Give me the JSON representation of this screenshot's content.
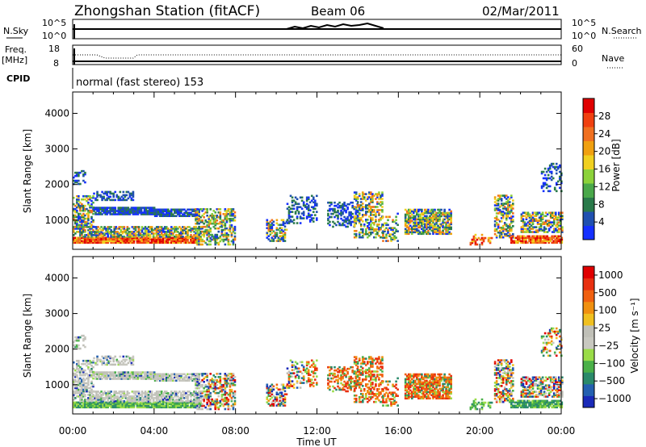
{
  "header": {
    "title": "Zhongshan Station (fitACF)",
    "beam": "Beam 06",
    "date": "02/Mar/2011"
  },
  "top_panels": {
    "nsky_label": "N.Sky",
    "nsearch_label": "N.Search",
    "noise_ticks": [
      "10^5",
      "10^0"
    ],
    "freq_label_1": "Freq.",
    "freq_label_2": "[MHz]",
    "freq_ticks": [
      "18",
      "8"
    ],
    "nave_label": "Nave",
    "nave_ticks": [
      "60",
      "0"
    ],
    "cpid_label": "CPID",
    "cpid_text": "normal (fast stereo) 153"
  },
  "chart_data": [
    {
      "type": "heatmap",
      "name": "power",
      "xlabel": "Time UT",
      "ylabel": "Slant Range [km]",
      "x_ticks": [
        "00:00",
        "04:00",
        "08:00",
        "12:00",
        "16:00",
        "20:00",
        "00:00"
      ],
      "xlim_hours": [
        0,
        24
      ],
      "y_ticks": [
        "1000",
        "2000",
        "3000",
        "4000"
      ],
      "ylim": [
        180,
        4600
      ],
      "colorbar": {
        "label": "Power [dB]",
        "ticks": [
          "4",
          "8",
          "12",
          "16",
          "20",
          "24",
          "28"
        ],
        "range": [
          0,
          32
        ],
        "colors": [
          "#1530ff",
          "#2050b0",
          "#2a7a4a",
          "#4aa84a",
          "#8cd23a",
          "#f0d020",
          "#f0a010",
          "#f07020",
          "#f04010",
          "#e00000"
        ]
      }
    },
    {
      "type": "heatmap",
      "name": "velocity",
      "xlabel": "Time UT",
      "ylabel": "Slant Range [km]",
      "x_ticks": [
        "00:00",
        "04:00",
        "08:00",
        "12:00",
        "16:00",
        "20:00",
        "00:00"
      ],
      "xlim_hours": [
        0,
        24
      ],
      "y_ticks": [
        "1000",
        "2000",
        "3000",
        "4000"
      ],
      "ylim": [
        180,
        4600
      ],
      "colorbar": {
        "label": "Velocity [m s⁻¹]",
        "ticks": [
          "1000",
          "500",
          "100",
          "25",
          "−25",
          "−100",
          "−500",
          "−1000"
        ],
        "colors": [
          "#1a2ab8",
          "#2460b0",
          "#2a8a6a",
          "#4ab048",
          "#9adc48",
          "#c8c8c0",
          "#c0c0b8",
          "#f0c020",
          "#f09010",
          "#f06010",
          "#e83010",
          "#e00000"
        ]
      }
    }
  ]
}
